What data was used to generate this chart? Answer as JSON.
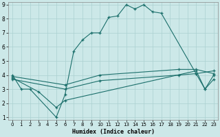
{
  "xlabel": "Humidex (Indice chaleur)",
  "bg_color": "#cce8e8",
  "line_color": "#1a6e6a",
  "grid_color": "#aad0d0",
  "xlim": [
    -0.5,
    23.5
  ],
  "ylim": [
    0.8,
    9.2
  ],
  "xticks": [
    0,
    1,
    2,
    3,
    4,
    5,
    6,
    7,
    8,
    9,
    10,
    11,
    12,
    13,
    14,
    15,
    16,
    17,
    18,
    19,
    20,
    21,
    22,
    23
  ],
  "yticks": [
    1,
    2,
    3,
    4,
    5,
    6,
    7,
    8,
    9
  ],
  "series": [
    {
      "x": [
        0,
        1,
        2,
        5,
        6,
        7,
        8,
        9,
        10,
        11,
        12,
        13,
        14,
        15,
        16,
        17,
        22,
        23
      ],
      "y": [
        4.0,
        3.0,
        3.0,
        1.0,
        2.6,
        5.7,
        6.5,
        7.0,
        7.0,
        8.1,
        8.2,
        9.0,
        8.7,
        9.0,
        8.5,
        8.4,
        3.0,
        4.0
      ]
    },
    {
      "x": [
        0,
        6,
        10,
        19,
        21,
        23
      ],
      "y": [
        3.9,
        3.3,
        4.0,
        4.4,
        4.4,
        4.1
      ]
    },
    {
      "x": [
        0,
        6,
        10,
        19,
        21,
        23
      ],
      "y": [
        3.7,
        3.0,
        3.6,
        4.0,
        4.1,
        4.3
      ]
    },
    {
      "x": [
        0,
        3,
        5,
        6,
        21,
        22,
        23
      ],
      "y": [
        3.8,
        2.8,
        1.7,
        2.2,
        4.3,
        3.0,
        3.7
      ]
    }
  ]
}
